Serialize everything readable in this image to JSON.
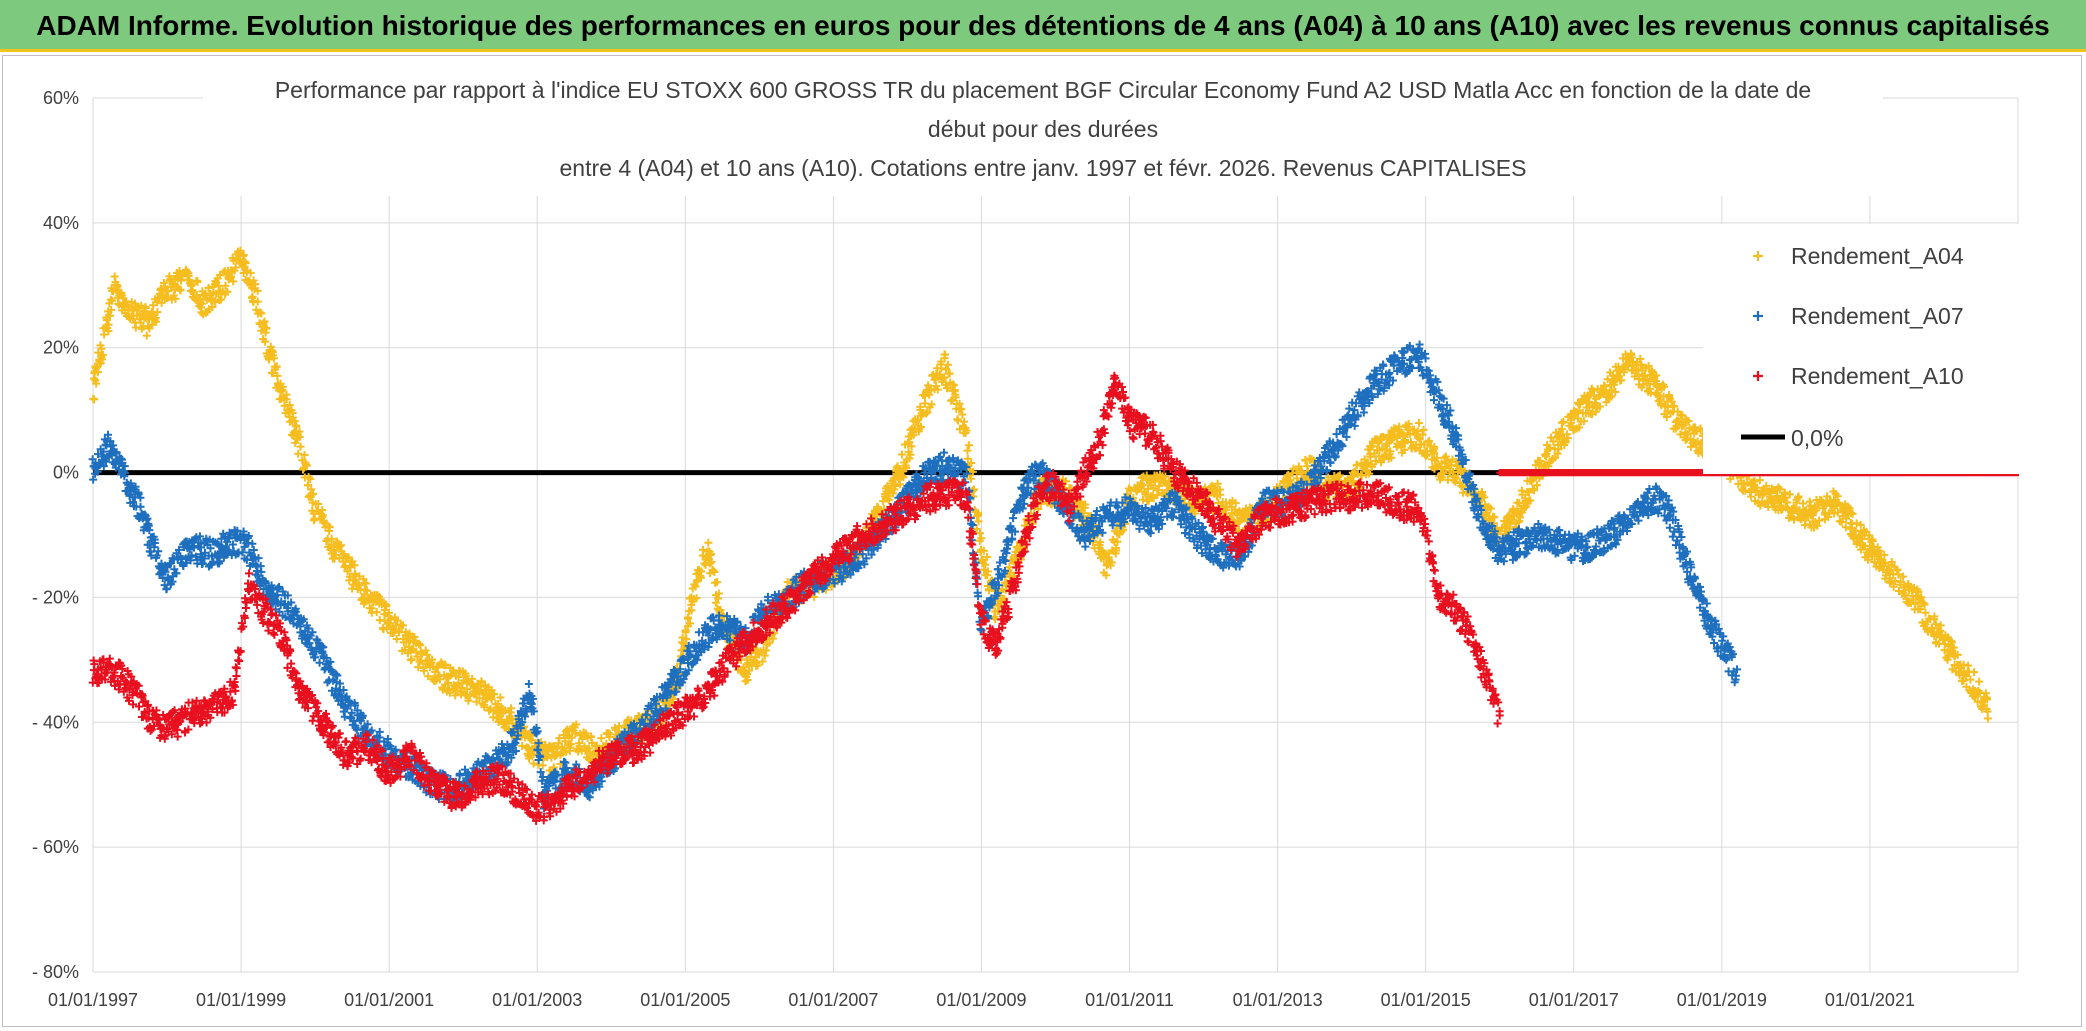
{
  "banner": {
    "title": "ADAM Informe. Evolution historique des performances en euros pour des détentions de 4 ans (A04) à 10 ans (A10) avec les revenus connus capitalisés"
  },
  "colors": {
    "banner_bg": "#7dc97d",
    "banner_border": "#f0c419",
    "a04": "#f5bd1f",
    "a07": "#1f6fbf",
    "a10": "#e8101e",
    "zero": "#000000",
    "grid": "#d9d9d9"
  },
  "chart_data": {
    "type": "scatter",
    "title_lines": [
      "Performance par rapport à l'indice EU STOXX 600 GROSS TR  du placement BGF Circular Economy Fund A2 USD Matla Acc en fonction de la date de",
      "début pour des durées",
      "entre 4 (A04) et 10 ans (A10). Cotations entre janv. 1997 et févr. 2026. Revenus CAPITALISES"
    ],
    "xlim": [
      1997.0,
      2023.0
    ],
    "ylim": [
      -80,
      60
    ],
    "y_ticks": [
      60,
      40,
      20,
      0,
      -20,
      -40,
      -60,
      -80
    ],
    "y_tick_labels": [
      "60%",
      "40%",
      "20%",
      "0%",
      "- 20%",
      "- 40%",
      "- 60%",
      "- 80%"
    ],
    "x_ticks": [
      1997,
      1999,
      2001,
      2003,
      2005,
      2007,
      2009,
      2011,
      2013,
      2015,
      2017,
      2019,
      2021
    ],
    "x_tick_labels": [
      "01/01/1997",
      "01/01/1999",
      "01/01/2001",
      "01/01/2003",
      "01/01/2005",
      "01/01/2007",
      "01/01/2009",
      "01/01/2011",
      "01/01/2013",
      "01/01/2015",
      "01/01/2017",
      "01/01/2019",
      "01/01/2021"
    ],
    "grid": true,
    "legend_position": "top-right",
    "series": [
      {
        "name": "Rendement_A04",
        "marker": "+",
        "x": [
          1997.0,
          1997.15,
          1997.3,
          1997.5,
          1997.75,
          1998.0,
          1998.25,
          1998.5,
          1998.75,
          1999.0,
          1999.2,
          1999.4,
          1999.6,
          1999.8,
          2000.0,
          2000.3,
          2000.6,
          2001.0,
          2001.3,
          2001.6,
          2002.0,
          2002.3,
          2002.6,
          2002.9,
          2003.2,
          2003.5,
          2003.8,
          2004.2,
          2004.6,
          2004.9,
          2005.1,
          2005.3,
          2005.5,
          2005.8,
          2006.1,
          2006.4,
          2006.7,
          2007.0,
          2007.3,
          2007.6,
          2007.9,
          2008.2,
          2008.5,
          2008.8,
          2009.0,
          2009.2,
          2009.5,
          2009.8,
          2010.1,
          2010.4,
          2010.7,
          2011.0,
          2011.3,
          2011.6,
          2011.9,
          2012.2,
          2012.5,
          2012.8,
          2013.1,
          2013.4,
          2013.7,
          2014.0,
          2014.3,
          2014.6,
          2014.9,
          2015.2,
          2015.5,
          2015.8,
          2016.0,
          2016.3,
          2016.6,
          2016.9,
          2017.2,
          2017.5,
          2017.7,
          2017.9,
          2018.1,
          2018.4,
          2018.7,
          2019.0,
          2019.3,
          2019.6,
          2019.9,
          2020.2,
          2020.5,
          2020.8,
          2021.1,
          2021.4,
          2021.7,
          2022.0,
          2022.2,
          2022.4,
          2022.6
        ],
        "y": [
          13,
          22,
          30,
          26,
          24,
          29,
          31,
          27,
          30,
          34,
          28,
          18,
          11,
          4,
          -6,
          -13,
          -18,
          -24,
          -28,
          -32,
          -34,
          -36,
          -39,
          -44,
          -46,
          -42,
          -45,
          -42,
          -40,
          -33,
          -20,
          -12,
          -24,
          -32,
          -27,
          -19,
          -18,
          -16,
          -13,
          -7,
          0,
          10,
          17,
          5,
          -12,
          -22,
          -13,
          -3,
          -3,
          -7,
          -15,
          -4,
          -2,
          -3,
          -5,
          -4,
          -8,
          -7,
          -3,
          1,
          -3,
          -2,
          3,
          5,
          6,
          1,
          -1,
          -6,
          -11,
          -5,
          2,
          7,
          11,
          14,
          18,
          16,
          14,
          8,
          5,
          2,
          -1,
          -4,
          -5,
          -7,
          -5,
          -9,
          -14,
          -17,
          -22,
          -27,
          -31,
          -34,
          -38
        ]
      },
      {
        "name": "Rendement_A07",
        "marker": "+",
        "x": [
          1997.0,
          1997.2,
          1997.4,
          1997.6,
          1997.8,
          1998.0,
          1998.3,
          1998.6,
          1998.9,
          1999.1,
          1999.3,
          1999.5,
          1999.8,
          2000.1,
          2000.4,
          2000.7,
          2001.0,
          2001.3,
          2001.6,
          2001.9,
          2002.1,
          2002.4,
          2002.7,
          2002.9,
          2003.1,
          2003.4,
          2003.7,
          2004.0,
          2004.3,
          2004.6,
          2004.9,
          2005.2,
          2005.5,
          2005.8,
          2006.1,
          2006.4,
          2006.7,
          2007.0,
          2007.3,
          2007.6,
          2007.9,
          2008.2,
          2008.5,
          2008.8,
          2009.0,
          2009.2,
          2009.4,
          2009.6,
          2009.8,
          2010.1,
          2010.4,
          2010.7,
          2011.0,
          2011.3,
          2011.6,
          2011.9,
          2012.2,
          2012.5,
          2012.8,
          2013.1,
          2013.4,
          2013.7,
          2014.0,
          2014.3,
          2014.6,
          2014.9,
          2015.1,
          2015.4,
          2015.7,
          2016.0,
          2016.3,
          2016.6,
          2016.9,
          2017.2,
          2017.5,
          2017.8,
          2018.0,
          2018.2,
          2018.4,
          2018.6,
          2018.8,
          2019.0,
          2019.2
        ],
        "y": [
          0,
          4,
          0,
          -5,
          -12,
          -17,
          -12,
          -13,
          -11,
          -12,
          -18,
          -20,
          -24,
          -30,
          -37,
          -42,
          -45,
          -47,
          -50,
          -51,
          -49,
          -47,
          -43,
          -35,
          -52,
          -48,
          -50,
          -46,
          -42,
          -38,
          -33,
          -27,
          -24,
          -27,
          -22,
          -20,
          -17,
          -16,
          -14,
          -10,
          -6,
          -1,
          1,
          -1,
          -25,
          -18,
          -10,
          -2,
          0,
          -5,
          -10,
          -7,
          -6,
          -8,
          -5,
          -10,
          -13,
          -14,
          -5,
          -5,
          -3,
          3,
          9,
          14,
          17,
          19,
          14,
          6,
          -6,
          -13,
          -11,
          -10,
          -12,
          -12,
          -10,
          -7,
          -5,
          -4,
          -10,
          -17,
          -23,
          -28,
          -32
        ]
      },
      {
        "name": "Rendement_A10",
        "marker": "+",
        "x": [
          1997.0,
          1997.2,
          1997.4,
          1997.6,
          1997.8,
          1998.0,
          1998.3,
          1998.6,
          1998.9,
          1999.1,
          1999.3,
          1999.5,
          1999.8,
          2000.1,
          2000.4,
          2000.7,
          2001.0,
          2001.3,
          2001.6,
          2001.9,
          2002.2,
          2002.5,
          2002.8,
          2003.0,
          2003.2,
          2003.5,
          2003.8,
          2004.1,
          2004.4,
          2004.7,
          2005.0,
          2005.3,
          2005.6,
          2005.9,
          2006.2,
          2006.5,
          2006.8,
          2007.1,
          2007.4,
          2007.7,
          2008.0,
          2008.3,
          2008.6,
          2008.8,
          2009.0,
          2009.2,
          2009.4,
          2009.6,
          2009.8,
          2010.0,
          2010.2,
          2010.4,
          2010.6,
          2010.8,
          2011.0,
          2011.3,
          2011.6,
          2011.9,
          2012.2,
          2012.5,
          2012.8,
          2013.1,
          2013.4,
          2013.7,
          2014.0,
          2014.3,
          2014.6,
          2014.9,
          2015.0,
          2015.2,
          2015.4,
          2015.6,
          2015.8,
          2016.0
        ],
        "y": [
          -32,
          -31,
          -33,
          -36,
          -40,
          -41,
          -39,
          -38,
          -35,
          -18,
          -22,
          -25,
          -35,
          -40,
          -45,
          -44,
          -48,
          -45,
          -50,
          -52,
          -50,
          -49,
          -52,
          -54,
          -53,
          -50,
          -47,
          -45,
          -44,
          -41,
          -38,
          -35,
          -30,
          -26,
          -23,
          -20,
          -16,
          -13,
          -10,
          -8,
          -6,
          -4,
          -3,
          -4,
          -24,
          -28,
          -20,
          -10,
          -3,
          -2,
          -6,
          0,
          5,
          15,
          8,
          6,
          0,
          -3,
          -8,
          -12,
          -7,
          -6,
          -5,
          -4,
          -4,
          -3,
          -5,
          -6,
          -10,
          -20,
          -22,
          -26,
          -32,
          -39
        ]
      }
    ],
    "zero_line": {
      "name": "0,0%",
      "value": 0
    },
    "a10_zero_tail": {
      "x_start": 2016.0,
      "x_end": 2023.0,
      "value": 0
    }
  }
}
